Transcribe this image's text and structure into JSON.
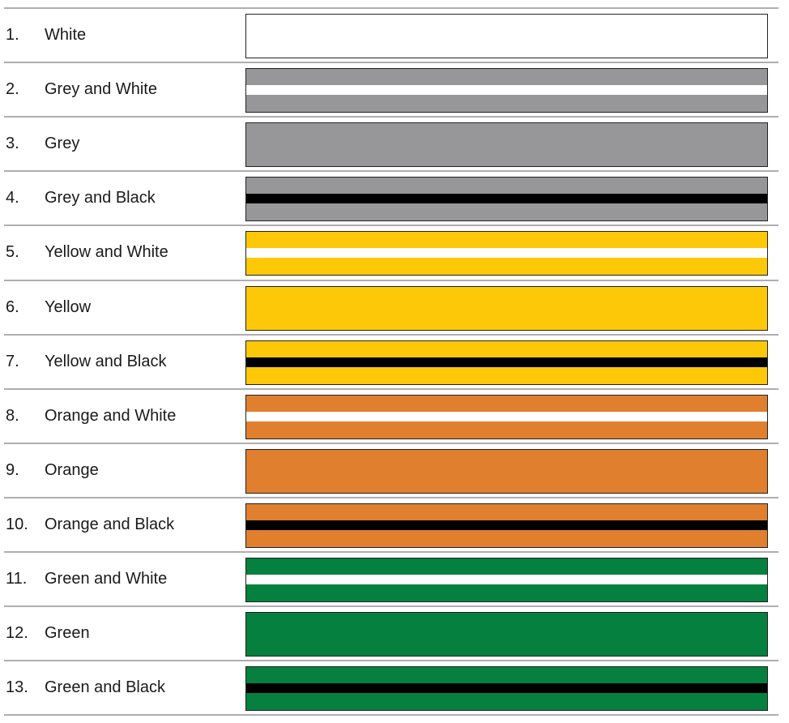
{
  "colors": {
    "white": "#ffffff",
    "grey": "#97979a",
    "yellow": "#fdc807",
    "orange": "#e07f2e",
    "green": "#05803f",
    "black": "#000000"
  },
  "rows": [
    {
      "number": "1.",
      "label": "White",
      "base": "white",
      "stripe": null
    },
    {
      "number": "2.",
      "label": "Grey and White",
      "base": "grey",
      "stripe": "white"
    },
    {
      "number": "3.",
      "label": "Grey",
      "base": "grey",
      "stripe": null
    },
    {
      "number": "4.",
      "label": "Grey and Black",
      "base": "grey",
      "stripe": "black"
    },
    {
      "number": "5.",
      "label": "Yellow and White",
      "base": "yellow",
      "stripe": "white"
    },
    {
      "number": "6.",
      "label": "Yellow",
      "base": "yellow",
      "stripe": null
    },
    {
      "number": "7.",
      "label": "Yellow and Black",
      "base": "yellow",
      "stripe": "black"
    },
    {
      "number": "8.",
      "label": "Orange and White",
      "base": "orange",
      "stripe": "white"
    },
    {
      "number": "9.",
      "label": "Orange",
      "base": "orange",
      "stripe": null
    },
    {
      "number": "10.",
      "label": "Orange and Black",
      "base": "orange",
      "stripe": "black"
    },
    {
      "number": "11.",
      "label": "Green and White",
      "base": "green",
      "stripe": "white"
    },
    {
      "number": "12.",
      "label": "Green",
      "base": "green",
      "stripe": null
    },
    {
      "number": "13.",
      "label": "Green and Black",
      "base": "green",
      "stripe": "black"
    }
  ]
}
